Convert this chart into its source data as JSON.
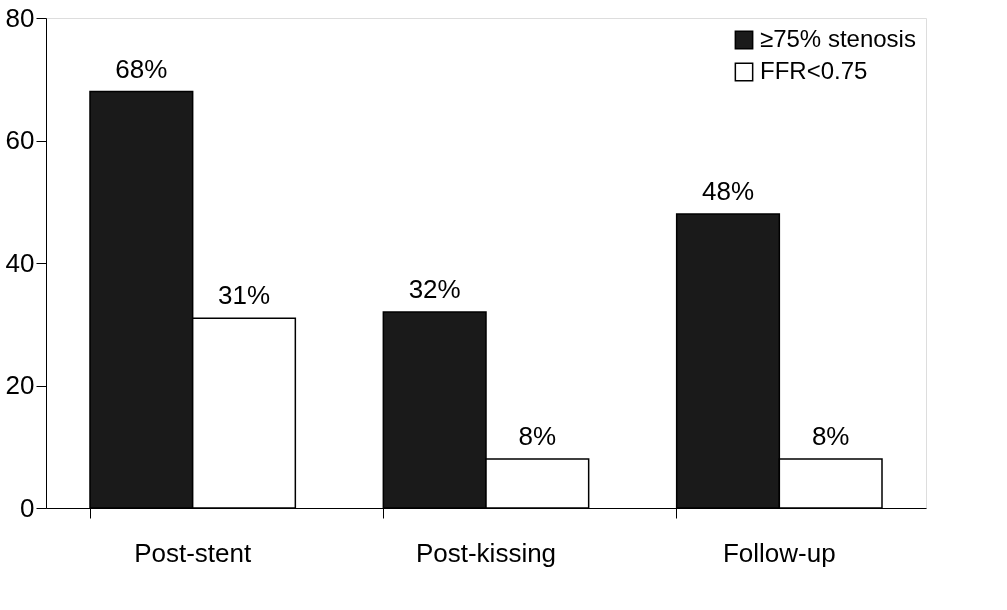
{
  "chart_data": {
    "type": "bar",
    "categories": [
      "Post-stent",
      "Post-kissing",
      "Follow-up"
    ],
    "series": [
      {
        "name": "≥75% stenosis",
        "color": "#1a1a1a",
        "values": [
          68,
          32,
          48
        ],
        "value_labels": [
          "68%",
          "32%",
          "48%"
        ]
      },
      {
        "name": "FFR<0.75",
        "color": "#ffffff",
        "values": [
          31,
          8,
          8
        ],
        "value_labels": [
          "31%",
          "8%",
          "8%"
        ]
      }
    ],
    "ylim": [
      0,
      80
    ],
    "yticks": [
      0,
      20,
      40,
      60,
      80
    ],
    "grid": false,
    "legend": "top right"
  }
}
